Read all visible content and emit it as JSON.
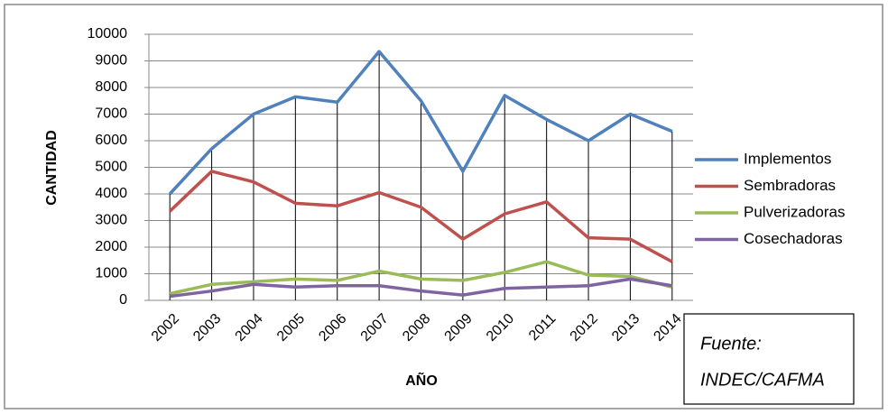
{
  "chart_data": {
    "type": "line",
    "x_label": "AÑO",
    "y_label": "CANTIDAD",
    "categories": [
      "2002",
      "2003",
      "2004",
      "2005",
      "2006",
      "2007",
      "2008",
      "2009",
      "2010",
      "2011",
      "2012",
      "2013",
      "2014"
    ],
    "series": [
      {
        "name": "Implementos",
        "color": "#4f81bd",
        "values": [
          4000,
          5700,
          7000,
          7650,
          7450,
          9350,
          7500,
          4850,
          7700,
          6800,
          6000,
          7000,
          6350
        ]
      },
      {
        "name": "Sembradoras",
        "color": "#c0504d",
        "values": [
          3350,
          4850,
          4450,
          3650,
          3550,
          4050,
          3500,
          2300,
          3250,
          3700,
          2350,
          2300,
          1450
        ]
      },
      {
        "name": "Pulverizadoras",
        "color": "#9bbb59",
        "values": [
          250,
          600,
          700,
          800,
          750,
          1100,
          800,
          750,
          1050,
          1450,
          950,
          900,
          500
        ]
      },
      {
        "name": "Cosechadoras",
        "color": "#8064a2",
        "values": [
          150,
          350,
          600,
          500,
          550,
          550,
          350,
          200,
          450,
          500,
          550,
          800,
          550
        ]
      }
    ],
    "ylim": [
      0,
      10000
    ],
    "yticks": [
      0,
      1000,
      2000,
      3000,
      4000,
      5000,
      6000,
      7000,
      8000,
      9000,
      10000
    ],
    "grid": true,
    "drop_lines": true,
    "legend": "right",
    "source": [
      "Fuente:",
      "INDEC/CAFMA"
    ]
  }
}
